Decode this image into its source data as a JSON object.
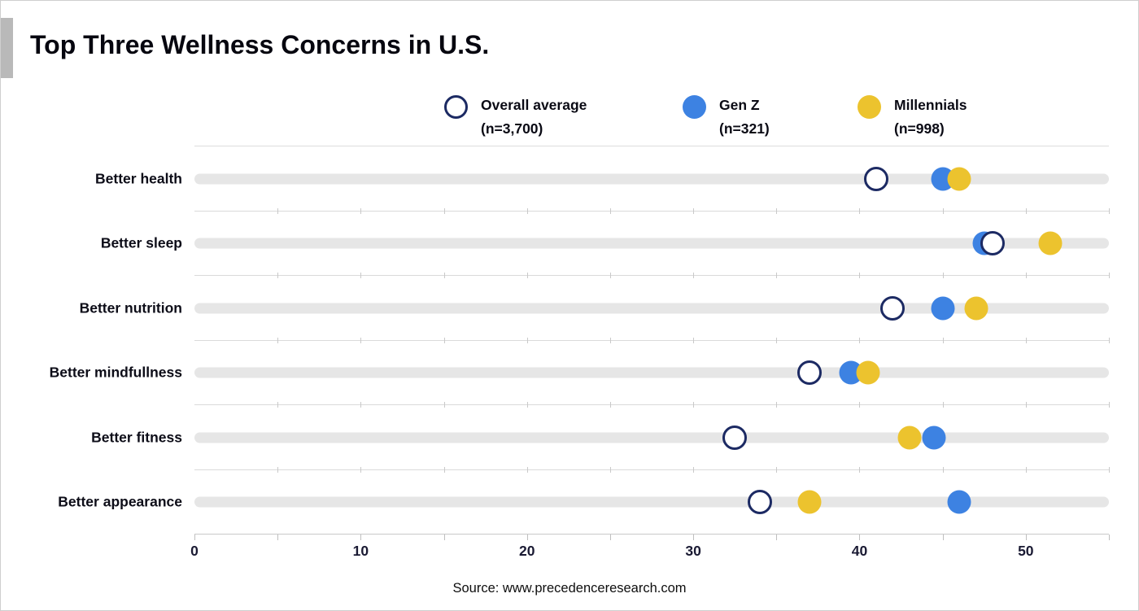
{
  "title": "Top Three Wellness Concerns in U.S.",
  "source": "Source: www.precedenceresearch.com",
  "chart_data": {
    "type": "scatter",
    "subtype": "horizontal-dot-plot",
    "title": "Top Three Wellness Concerns in U.S.",
    "categories": [
      "Better health",
      "Better sleep",
      "Better nutrition",
      "Better mindfullness",
      "Better fitness",
      "Better appearance"
    ],
    "series": [
      {
        "name": "Overall average",
        "subtitle": "(n=3,700)",
        "style": "open",
        "color": "#1c2a63",
        "values": [
          41,
          48,
          42,
          37,
          32.5,
          34
        ]
      },
      {
        "name": "Gen Z",
        "subtitle": "(n=321)",
        "style": "filled",
        "color": "#3d82e2",
        "values": [
          45,
          47.5,
          45,
          39.5,
          44.5,
          46
        ]
      },
      {
        "name": "Millennials",
        "subtitle": "(n=998)",
        "style": "filled",
        "color": "#ecc32e",
        "values": [
          46,
          51.5,
          47,
          40.5,
          43,
          37
        ]
      }
    ],
    "xlim": [
      0,
      55
    ],
    "x_ticks": [
      0,
      10,
      20,
      30,
      40,
      50
    ],
    "minor_tick_step": 5,
    "grid": "row-separators-with-minor-ticks",
    "legend_position": "top",
    "track_color": "#e6e6e6",
    "ylabel": "",
    "xlabel": ""
  }
}
